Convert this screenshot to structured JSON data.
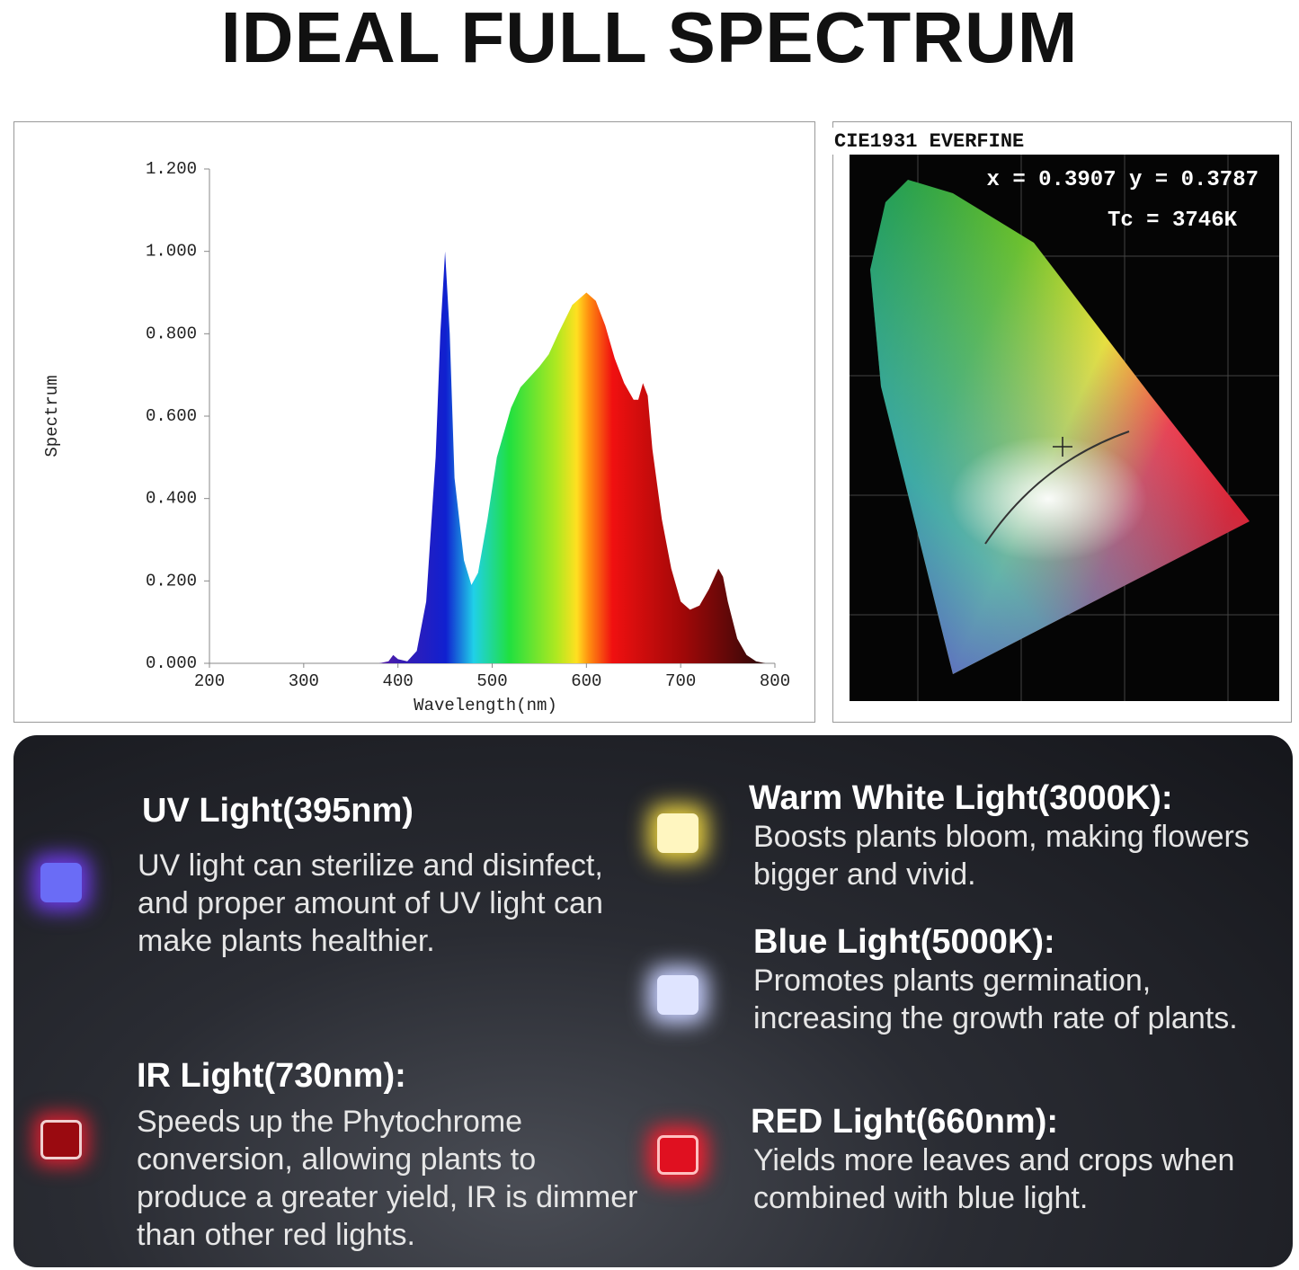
{
  "title": "IDEAL FULL SPECTRUM",
  "chart_data": {
    "type": "area",
    "x_label": "Wavelength(nm)",
    "y_label": "Spectrum",
    "x": [
      380,
      390,
      395,
      400,
      410,
      420,
      430,
      440,
      445,
      450,
      455,
      460,
      470,
      478,
      485,
      495,
      505,
      520,
      530,
      550,
      560,
      570,
      585,
      600,
      610,
      620,
      630,
      640,
      650,
      655,
      660,
      665,
      670,
      680,
      690,
      700,
      710,
      720,
      730,
      740,
      745,
      750,
      760,
      770,
      780,
      790
    ],
    "values": [
      0,
      0.005,
      0.02,
      0.01,
      0.005,
      0.03,
      0.15,
      0.5,
      0.8,
      1.0,
      0.8,
      0.45,
      0.25,
      0.19,
      0.22,
      0.35,
      0.5,
      0.62,
      0.67,
      0.72,
      0.75,
      0.8,
      0.87,
      0.9,
      0.88,
      0.82,
      0.74,
      0.68,
      0.64,
      0.64,
      0.68,
      0.65,
      0.52,
      0.35,
      0.23,
      0.15,
      0.13,
      0.14,
      0.18,
      0.23,
      0.21,
      0.15,
      0.06,
      0.02,
      0.005,
      0
    ],
    "xlim": [
      200,
      800
    ],
    "xticks": [
      200,
      300,
      400,
      500,
      600,
      700,
      800
    ],
    "ylim": [
      0,
      1.2
    ],
    "yticks": [
      {
        "value": 0,
        "label": "0.000"
      },
      {
        "value": 0.2,
        "label": "0.200"
      },
      {
        "value": 0.4,
        "label": "0.400"
      },
      {
        "value": 0.6,
        "label": "0.600"
      },
      {
        "value": 0.8,
        "label": "0.800"
      },
      {
        "value": 1.0,
        "label": "1.000"
      },
      {
        "value": 1.2,
        "label": "1.200"
      }
    ]
  },
  "cie": {
    "label": "CIE1931 EVERFINE",
    "coords": "x = 0.3907 y = 0.3787",
    "tc": "Tc = 3746K"
  },
  "features": [
    {
      "title": "UV Light(395nm)",
      "text": "UV light can sterilize and disinfect, and proper amount of UV light can make plants healthier."
    },
    {
      "title": "IR Light(730nm):",
      "text": "Speeds up the Phytochrome conversion, allowing plants to produce a greater yield, IR is dimmer than other red lights."
    },
    {
      "title": "Warm White Light(3000K):",
      "text": "Boosts plants bloom, making flowers bigger and vivid."
    },
    {
      "title": "Blue Light(5000K):",
      "text": "Promotes plants germination, increasing the growth rate of plants."
    },
    {
      "title": "RED Light(660nm):",
      "text": "Yields more leaves and crops when combined with blue light."
    }
  ]
}
